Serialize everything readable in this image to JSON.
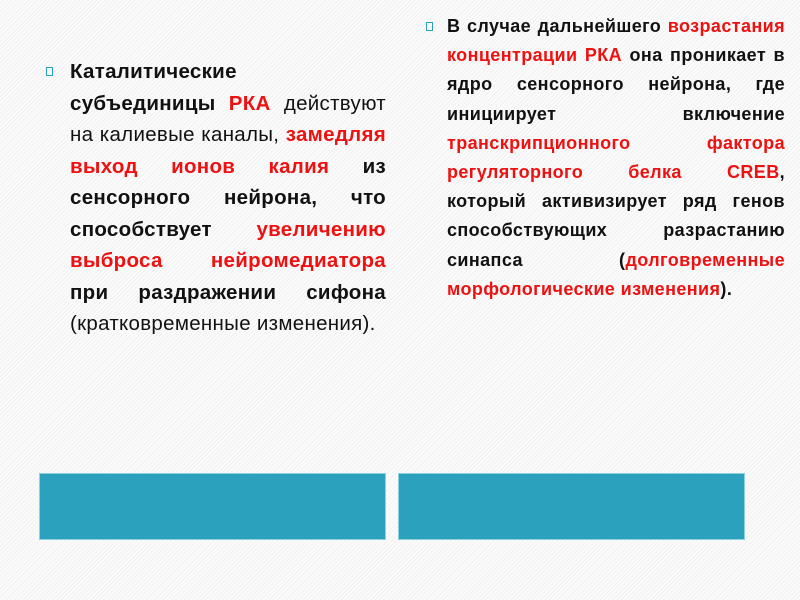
{
  "left_bullet": {
    "segments": [
      "Каталитические субъединицы ",
      "РКА",
      " действуют на калиевые каналы, ",
      "замедляя выход ионов калия",
      " из сенсорного нейрона, что способствует ",
      "увеличению выброса нейромедиатора",
      " при раздражении сифона",
      " (кратковременные изменения)."
    ]
  },
  "right_bullet": {
    "segments": [
      "В случае дальнейшего ",
      "возрастания концентрации РКА",
      " она проникает в ядро сенсорного нейрона, где инициирует включение ",
      "транскрипционного фактора регуляторного белка CREB",
      ", который активизирует ряд генов способствующих разрастанию синапса (",
      "долговременные морфологические изменения",
      ")."
    ]
  },
  "colors": {
    "accent": "#2ca1bd",
    "highlight": "#ee1111",
    "bullet": "#2ba0c0"
  },
  "icons": {
    "bullet": "hollow-square-bullet"
  }
}
